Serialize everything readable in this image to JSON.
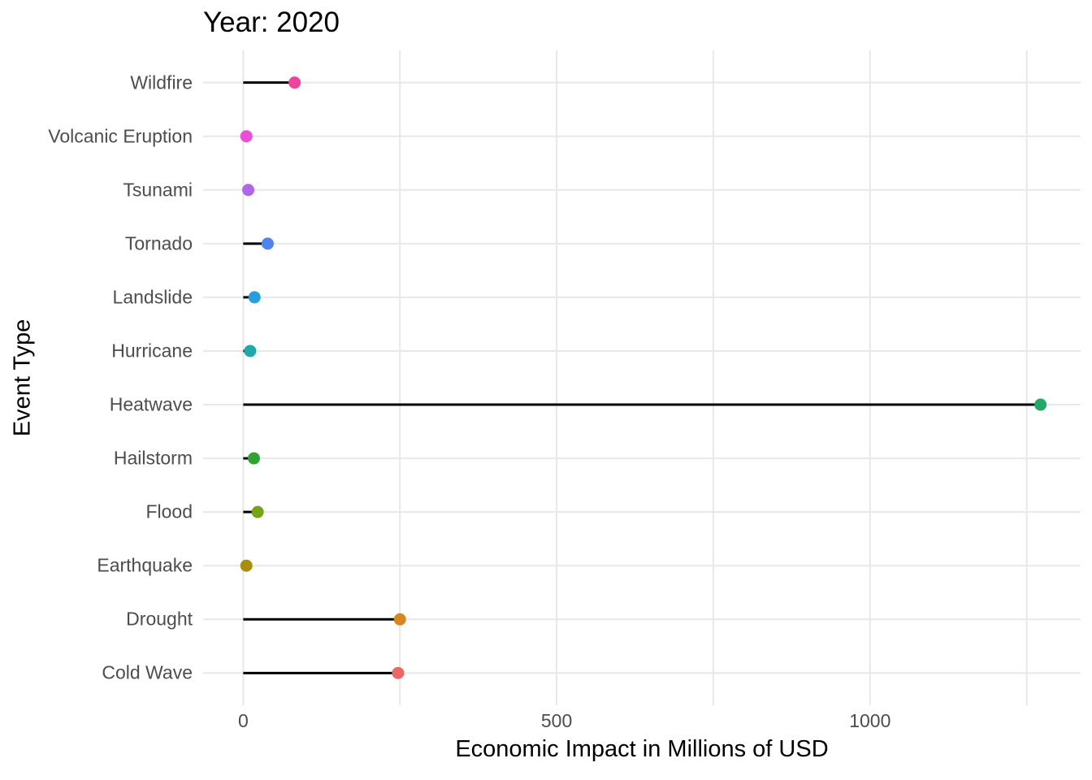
{
  "title": "Year: 2020",
  "axes": {
    "x_title": "Economic Impact in Millions of USD",
    "y_title": "Event Type"
  },
  "chart_data": {
    "type": "bar",
    "variant": "horizontal-lollipop",
    "title": "Year: 2020",
    "xlabel": "Economic Impact in Millions of USD",
    "ylabel": "Event Type",
    "categories": [
      "Wildfire",
      "Volcanic Eruption",
      "Tsunami",
      "Tornado",
      "Landslide",
      "Hurricane",
      "Heatwave",
      "Hailstorm",
      "Flood",
      "Earthquake",
      "Drought",
      "Cold Wave"
    ],
    "values": [
      82,
      5,
      8,
      39,
      18,
      11,
      1272,
      17,
      23,
      5,
      250,
      247
    ],
    "point_colors": [
      "#f0439b",
      "#e94fd9",
      "#b066ea",
      "#5282ec",
      "#279fdc",
      "#1ea9ab",
      "#23a865",
      "#30a432",
      "#76a317",
      "#a88d0f",
      "#d8861f",
      "#ed6767"
    ],
    "x_ticks": [
      0,
      500,
      1000
    ],
    "x_minor_ticks": [
      250,
      750,
      1250
    ],
    "xlim": [
      -64,
      1336
    ],
    "grid": "on",
    "legend": "none",
    "stem_color": "#000000",
    "grid_color": "#e8e8e8",
    "tick_label_color": "#4d4d4d",
    "background": "#ffffff"
  }
}
